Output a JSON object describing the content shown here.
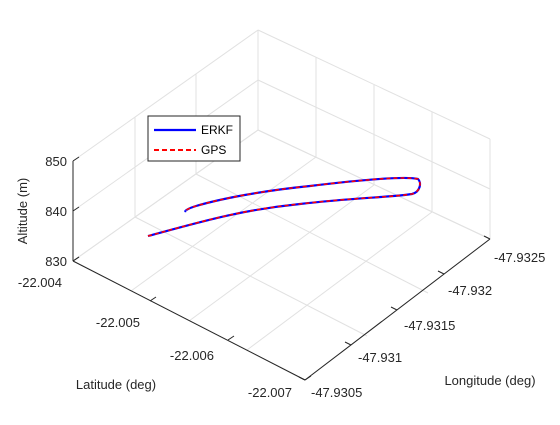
{
  "chart_data": {
    "type": "line",
    "projection": "3d",
    "grid": true,
    "legend_position": "top-left",
    "xlabel": "Longitude (deg)",
    "ylabel": "Latitude (deg)",
    "zlabel": "Altitude (m)",
    "x_ticks": [
      "-47.9305",
      "-47.931",
      "-47.9315",
      "-47.932",
      "-47.9325"
    ],
    "y_ticks": [
      "-22.004",
      "-22.005",
      "-22.006",
      "-22.007"
    ],
    "z_ticks": [
      "830",
      "840",
      "850"
    ],
    "xlim": [
      -47.9325,
      -47.9305
    ],
    "ylim": [
      -22.007,
      -22.004
    ],
    "zlim": [
      830,
      850
    ],
    "series": [
      {
        "name": "ERKF",
        "color": "#0000ff",
        "style": "solid",
        "lon": [
          -47.9311,
          -47.9312,
          -47.9314,
          -47.9317,
          -47.9319,
          -47.9322,
          -47.9323,
          -47.9321,
          -47.9318,
          -47.9316,
          -47.9313,
          -47.9312,
          -47.9311
        ],
        "lat": [
          -22.0068,
          -22.0063,
          -22.0058,
          -22.0052,
          -22.0047,
          -22.0041,
          -22.0043,
          -22.0045,
          -22.0051,
          -22.0055,
          -22.0061,
          -22.0066,
          -22.0063
        ],
        "alt": [
          832,
          833,
          834.5,
          836,
          837.5,
          839,
          836,
          834.5,
          834,
          833.5,
          833,
          832.5,
          840
        ]
      },
      {
        "name": "GPS",
        "color": "#ff0000",
        "style": "dashed",
        "lon": [
          -47.9311,
          -47.9312,
          -47.9314,
          -47.9317,
          -47.9319,
          -47.9322,
          -47.9323,
          -47.9321,
          -47.9318,
          -47.9316,
          -47.9313,
          -47.9312,
          -47.9311
        ],
        "lat": [
          -22.0068,
          -22.0063,
          -22.0058,
          -22.0052,
          -22.0047,
          -22.0041,
          -22.0043,
          -22.0045,
          -22.0051,
          -22.0055,
          -22.0061,
          -22.0066,
          -22.0063
        ],
        "alt": [
          832,
          833,
          834.5,
          836,
          837.5,
          839,
          836,
          834.5,
          834,
          833.5,
          833,
          832.5,
          840
        ]
      }
    ]
  }
}
